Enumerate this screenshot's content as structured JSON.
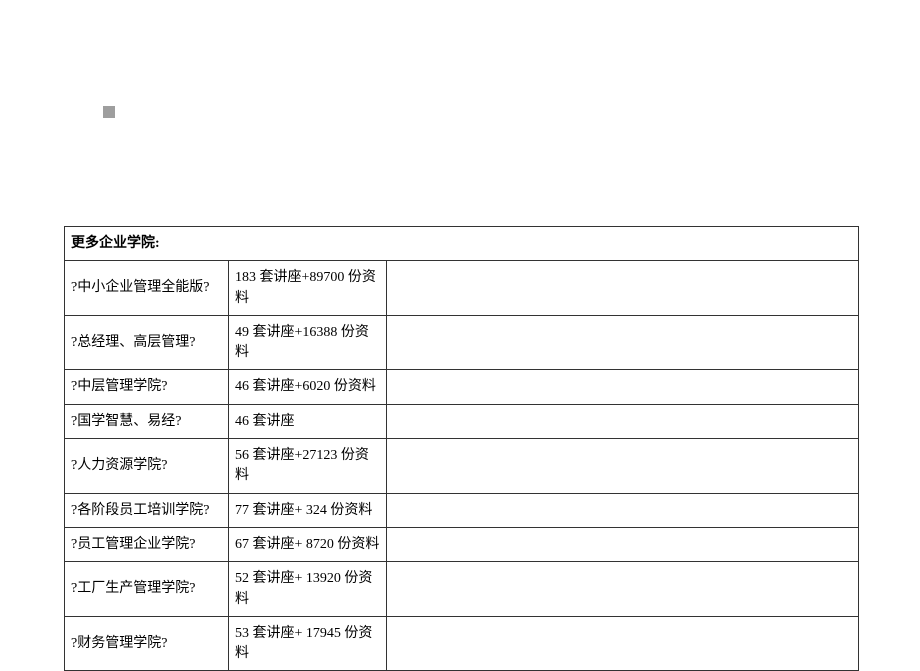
{
  "header": "更多企业学院:",
  "rows": [
    {
      "col1": "?中小企业管理全能版?",
      "col2": "183 套讲座+89700 份资料",
      "col3": ""
    },
    {
      "col1": "?总经理、高层管理?",
      "col2": "49 套讲座+16388 份资料",
      "col3": ""
    },
    {
      "col1": "?中层管理学院?",
      "col2": "46 套讲座+6020 份资料",
      "col3": ""
    },
    {
      "col1": "?国学智慧、易经?",
      "col2": "46 套讲座",
      "col3": ""
    },
    {
      "col1": "?人力资源学院?",
      "col2": "56 套讲座+27123 份资料",
      "col3": ""
    },
    {
      "col1": "?各阶段员工培训学院?",
      "col2": "77 套讲座+ 324 份资料",
      "col3": ""
    },
    {
      "col1": "?员工管理企业学院?",
      "col2": "67 套讲座+ 8720 份资料",
      "col3": ""
    },
    {
      "col1": "?工厂生产管理学院?",
      "col2": "52 套讲座+ 13920 份资料",
      "col3": ""
    },
    {
      "col1": "?财务管理学院?",
      "col2": "53 套讲座+ 17945 份资料",
      "col3": ""
    }
  ]
}
